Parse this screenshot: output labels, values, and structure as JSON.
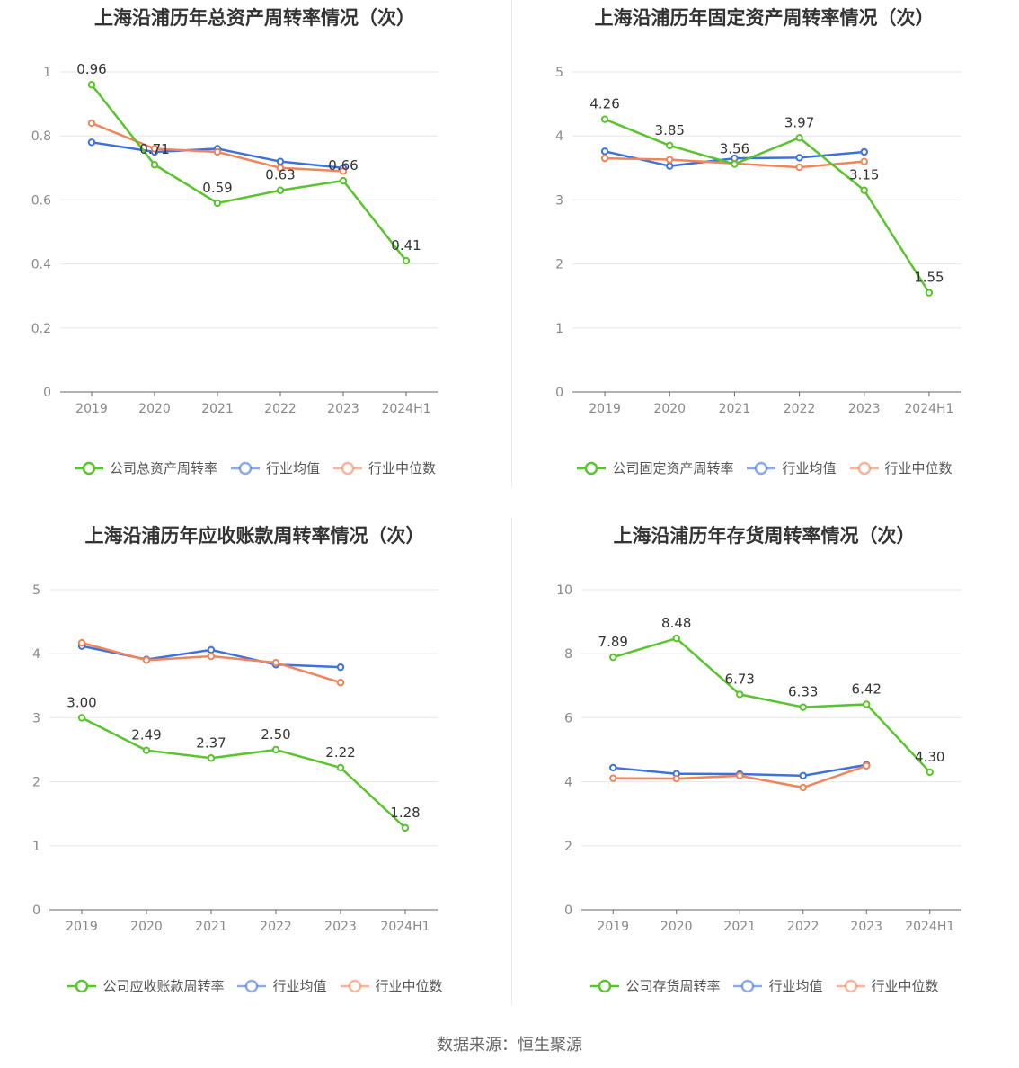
{
  "colors": {
    "company": "#5ac42e",
    "avg": "#3d72db",
    "median": "#f0845a"
  },
  "charts": [
    {
      "title": "上海沿浦历年总资产周转率情况（次）",
      "legend": [
        "公司总资产周转率",
        "行业均值",
        "行业中位数"
      ],
      "chart_data": {
        "type": "line",
        "categories": [
          "2019",
          "2020",
          "2021",
          "2022",
          "2023",
          "2024H1"
        ],
        "y_ticks": [
          "0",
          "0.2",
          "0.4",
          "0.6",
          "0.8",
          "1"
        ],
        "ylim": [
          0,
          1
        ],
        "series": [
          {
            "name": "公司总资产周转率",
            "values": [
              0.96,
              0.71,
              0.59,
              0.63,
              0.66,
              0.41
            ],
            "labels": [
              "0.96",
              "0.71",
              "0.59",
              "0.63",
              "0.66",
              "0.41"
            ]
          },
          {
            "name": "行业均值",
            "values": [
              0.78,
              0.75,
              0.76,
              0.72,
              0.7,
              null
            ]
          },
          {
            "name": "行业中位数",
            "values": [
              0.84,
              0.76,
              0.75,
              0.7,
              0.69,
              null
            ]
          }
        ]
      }
    },
    {
      "title": "上海沿浦历年固定资产周转率情况（次）",
      "legend": [
        "公司固定资产周转率",
        "行业均值",
        "行业中位数"
      ],
      "chart_data": {
        "type": "line",
        "categories": [
          "2019",
          "2020",
          "2021",
          "2022",
          "2023",
          "2024H1"
        ],
        "y_ticks": [
          "0",
          "1",
          "2",
          "3",
          "4",
          "5"
        ],
        "ylim": [
          0,
          5
        ],
        "series": [
          {
            "name": "公司固定资产周转率",
            "values": [
              4.26,
              3.85,
              3.56,
              3.97,
              3.15,
              1.55
            ],
            "labels": [
              "4.26",
              "3.85",
              "3.56",
              "3.97",
              "3.15",
              "1.55"
            ]
          },
          {
            "name": "行业均值",
            "values": [
              3.76,
              3.53,
              3.65,
              3.66,
              3.75,
              null
            ]
          },
          {
            "name": "行业中位数",
            "values": [
              3.65,
              3.63,
              3.57,
              3.51,
              3.6,
              null
            ]
          }
        ]
      }
    },
    {
      "title": "上海沿浦历年应收账款周转率情况（次）",
      "legend": [
        "公司应收账款周转率",
        "行业均值",
        "行业中位数"
      ],
      "chart_data": {
        "type": "line",
        "categories": [
          "2019",
          "2020",
          "2021",
          "2022",
          "2023",
          "2024H1"
        ],
        "y_ticks": [
          "0",
          "1",
          "2",
          "3",
          "4",
          "5"
        ],
        "ylim": [
          0,
          5
        ],
        "series": [
          {
            "name": "公司应收账款周转率",
            "values": [
              3.0,
              2.49,
              2.37,
              2.5,
              2.22,
              1.28
            ],
            "labels": [
              "3.00",
              "2.49",
              "2.37",
              "2.50",
              "2.22",
              "1.28"
            ]
          },
          {
            "name": "行业均值",
            "values": [
              4.12,
              3.91,
              4.06,
              3.83,
              3.79,
              null
            ]
          },
          {
            "name": "行业中位数",
            "values": [
              4.17,
              3.9,
              3.96,
              3.86,
              3.55,
              null
            ]
          }
        ]
      }
    },
    {
      "title": "上海沿浦历年存货周转率情况（次）",
      "legend": [
        "公司存货周转率",
        "行业均值",
        "行业中位数"
      ],
      "chart_data": {
        "type": "line",
        "categories": [
          "2019",
          "2020",
          "2021",
          "2022",
          "2023",
          "2024H1"
        ],
        "y_ticks": [
          "0",
          "2",
          "4",
          "6",
          "8",
          "10"
        ],
        "ylim": [
          0,
          10
        ],
        "series": [
          {
            "name": "公司存货周转率",
            "values": [
              7.89,
              8.48,
              6.73,
              6.33,
              6.42,
              4.3
            ],
            "labels": [
              "7.89",
              "8.48",
              "6.73",
              "6.33",
              "6.42",
              "4.30"
            ]
          },
          {
            "name": "行业均值",
            "values": [
              4.44,
              4.25,
              4.24,
              4.19,
              4.53,
              null
            ]
          },
          {
            "name": "行业中位数",
            "values": [
              4.11,
              4.1,
              4.19,
              3.82,
              4.5,
              null
            ]
          }
        ]
      }
    }
  ],
  "footer": {
    "source": "数据来源：恒生聚源"
  }
}
